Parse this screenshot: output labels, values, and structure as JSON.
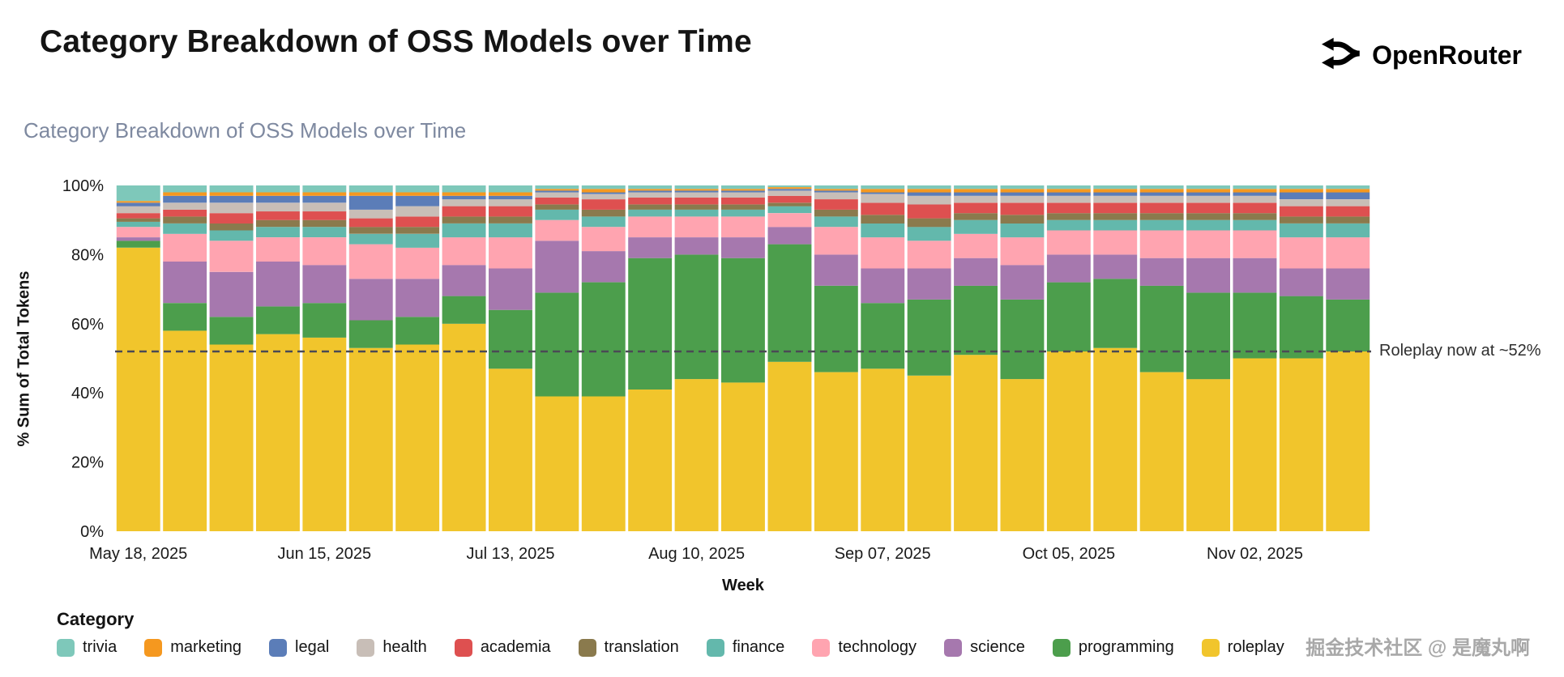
{
  "header": {
    "title": "Category Breakdown of OSS Models over Time",
    "brand": "OpenRouter"
  },
  "watermark": {
    "text": "掘金技术社区 @ 是魔丸啊"
  },
  "chart_data": {
    "type": "bar",
    "variant": "100-percent-stacked",
    "title": "Category Breakdown of OSS Models over Time",
    "xlabel": "Week",
    "ylabel": "% Sum of Total Tokens",
    "legend_title": "Category",
    "ylim": [
      0,
      100
    ],
    "grid": false,
    "legend_position": "bottom",
    "y_ticks": [
      {
        "value": 0,
        "label": "0%"
      },
      {
        "value": 20,
        "label": "20%"
      },
      {
        "value": 40,
        "label": "40%"
      },
      {
        "value": 60,
        "label": "60%"
      },
      {
        "value": 80,
        "label": "80%"
      },
      {
        "value": 100,
        "label": "100%"
      }
    ],
    "x_ticks": [
      {
        "index": 0,
        "label": "May 18, 2025"
      },
      {
        "index": 4,
        "label": "Jun 15, 2025"
      },
      {
        "index": 8,
        "label": "Jul 13, 2025"
      },
      {
        "index": 12,
        "label": "Aug 10, 2025"
      },
      {
        "index": 16,
        "label": "Sep 07, 2025"
      },
      {
        "index": 20,
        "label": "Oct 05, 2025"
      },
      {
        "index": 24,
        "label": "Nov 02, 2025"
      }
    ],
    "weeks": [
      "May 18, 2025",
      "May 25, 2025",
      "Jun 01, 2025",
      "Jun 08, 2025",
      "Jun 15, 2025",
      "Jun 22, 2025",
      "Jun 29, 2025",
      "Jul 06, 2025",
      "Jul 13, 2025",
      "Jul 20, 2025",
      "Jul 27, 2025",
      "Aug 03, 2025",
      "Aug 10, 2025",
      "Aug 17, 2025",
      "Aug 24, 2025",
      "Aug 31, 2025",
      "Sep 07, 2025",
      "Sep 14, 2025",
      "Sep 21, 2025",
      "Sep 28, 2025",
      "Oct 05, 2025",
      "Oct 12, 2025",
      "Oct 19, 2025",
      "Oct 26, 2025",
      "Nov 02, 2025",
      "Nov 09, 2025",
      "Nov 16, 2025"
    ],
    "stack_order_bottom_to_top": [
      "roleplay",
      "programming",
      "science",
      "technology",
      "finance",
      "translation",
      "academia",
      "health",
      "legal",
      "marketing",
      "trivia"
    ],
    "series": [
      {
        "name": "trivia",
        "color": "#7EC8BA",
        "values": [
          4.5,
          2,
          2,
          2,
          2,
          2,
          2,
          2,
          2,
          1,
          1,
          1,
          1,
          1,
          0.5,
          1,
          1,
          1,
          1,
          1,
          1,
          1,
          1,
          1,
          1,
          1,
          1
        ]
      },
      {
        "name": "marketing",
        "color": "#F5981F",
        "values": [
          0.5,
          1,
          1,
          1,
          1,
          1,
          1,
          1,
          1,
          0.5,
          1,
          0.5,
          0.5,
          0.5,
          0.5,
          0.5,
          1,
          1,
          1,
          1,
          1,
          1,
          1,
          1,
          1,
          1,
          1
        ]
      },
      {
        "name": "legal",
        "color": "#5B7DB8",
        "values": [
          1,
          2,
          2,
          2,
          2,
          4,
          3,
          1,
          1,
          0.5,
          0.5,
          0.5,
          0.5,
          0.5,
          0.5,
          0.5,
          0.5,
          1,
          1,
          1,
          1,
          1,
          1,
          1,
          1,
          2,
          2
        ]
      },
      {
        "name": "health",
        "color": "#C8BEB7",
        "values": [
          2,
          2,
          3,
          2.5,
          2.5,
          2.5,
          3,
          2,
          2,
          1.5,
          1.5,
          1.5,
          1.5,
          1.5,
          1.5,
          2,
          2.5,
          2.5,
          2,
          2,
          2,
          2,
          2,
          2,
          2,
          2,
          2
        ]
      },
      {
        "name": "academia",
        "color": "#DE5050",
        "values": [
          1.5,
          2,
          3,
          2.5,
          2.5,
          2.5,
          3,
          3,
          3,
          2,
          3,
          2,
          2,
          2,
          2,
          3,
          3.5,
          4,
          3,
          3.5,
          3,
          3,
          3,
          3,
          3,
          3,
          3
        ]
      },
      {
        "name": "translation",
        "color": "#8A7A4D",
        "values": [
          1,
          2,
          2,
          2,
          2,
          2,
          2,
          2,
          2,
          1.5,
          2,
          1.5,
          1.5,
          1.5,
          1,
          2,
          2.5,
          2.5,
          2,
          2.5,
          2,
          2,
          2,
          2,
          2,
          2,
          2
        ]
      },
      {
        "name": "finance",
        "color": "#63B8AC",
        "values": [
          1.5,
          3,
          3,
          3,
          3,
          3,
          4,
          4,
          4,
          3,
          3,
          2,
          2,
          2,
          2,
          3,
          4,
          4,
          4,
          4,
          3,
          3,
          3,
          3,
          3,
          4,
          4
        ]
      },
      {
        "name": "technology",
        "color": "#FFA4B0",
        "values": [
          3,
          8,
          9,
          7,
          8,
          10,
          9,
          8,
          9,
          6,
          7,
          6,
          6,
          6,
          4,
          8,
          9,
          8,
          7,
          8,
          7,
          7,
          8,
          8,
          8,
          9,
          9
        ]
      },
      {
        "name": "science",
        "color": "#A678AE",
        "values": [
          1,
          12,
          13,
          13,
          11,
          12,
          11,
          9,
          12,
          15,
          9,
          6,
          5,
          6,
          5,
          9,
          10,
          9,
          8,
          10,
          8,
          7,
          8,
          10,
          10,
          8,
          9
        ]
      },
      {
        "name": "programming",
        "color": "#4C9E4C",
        "values": [
          2,
          8,
          8,
          8,
          10,
          8,
          8,
          8,
          17,
          30,
          33,
          38,
          36,
          36,
          34,
          25,
          19,
          22,
          20,
          23,
          20,
          20,
          25,
          25,
          19,
          18,
          15
        ]
      },
      {
        "name": "roleplay",
        "color": "#F1C52C",
        "values": [
          82,
          58,
          54,
          57,
          56,
          53,
          54,
          60,
          47,
          39,
          39,
          41,
          44,
          43,
          49,
          46,
          47,
          45,
          51,
          44,
          52,
          53,
          46,
          44,
          50,
          50,
          52
        ]
      }
    ],
    "reference_line": {
      "y": 52,
      "color": "#4A4A55",
      "style": "dashed"
    },
    "annotation": {
      "text": "Roleplay now at ~52%",
      "y": 52
    }
  }
}
